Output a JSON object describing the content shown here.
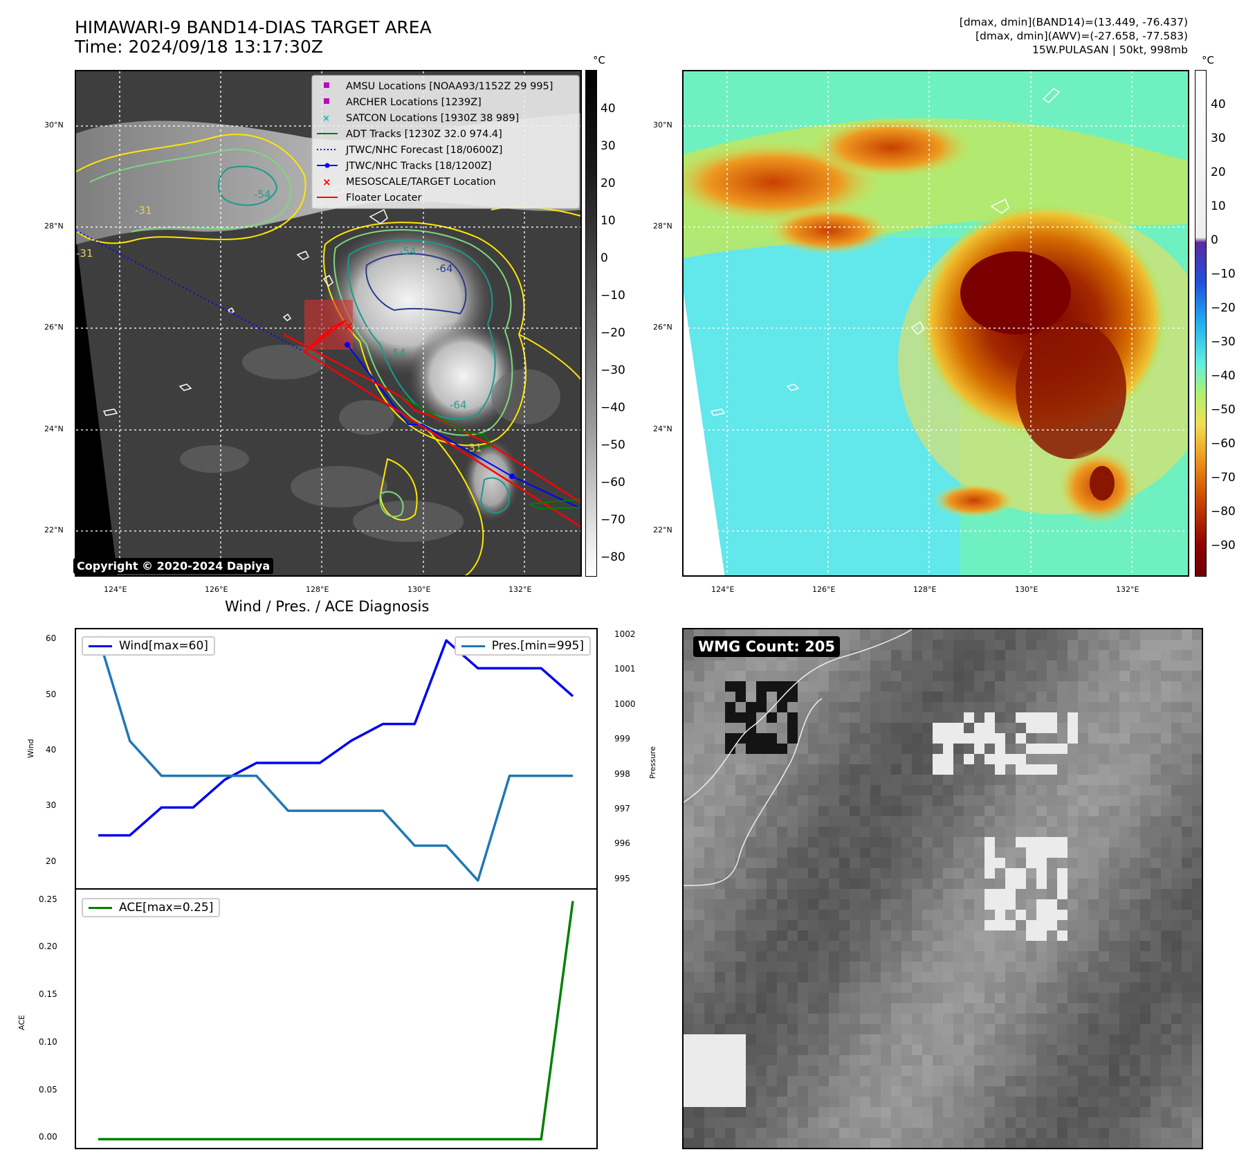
{
  "header": {
    "title_line1": "HIMAWARI-9 BAND14-DIAS TARGET AREA",
    "title_line2": "Time: 2024/09/18 13:17:30Z",
    "stats_line1": "[dmax, dmin](BAND14)=(13.449, -76.437)",
    "stats_line2": "[dmax, dmin](AWV)=(-27.658, -77.583)",
    "stats_line3": "15W.PULASAN | 50kt, 998mb"
  },
  "ir_panel": {
    "copyright": "Copyright © 2020-2024 Dapiya",
    "lat_labels": [
      "30°N",
      "28°N",
      "26°N",
      "24°N",
      "22°N"
    ],
    "lon_labels": [
      "124°E",
      "126°E",
      "128°E",
      "130°E",
      "132°E"
    ],
    "contour_labels": [
      "-31",
      "-31",
      "-54",
      "-54",
      "-64",
      "-54",
      "-31",
      "-64"
    ],
    "colorbar": {
      "unit": "°C",
      "ticks": [
        "40",
        "30",
        "20",
        "10",
        "0",
        "−10",
        "−20",
        "−30",
        "−40",
        "−50",
        "−60",
        "−70",
        "−80"
      ]
    },
    "legend": [
      {
        "label": "AMSU Locations [NOAA93/1152Z 29 995]",
        "marker": "square",
        "color": "#c000c0"
      },
      {
        "label": "ARCHER Locations [1239Z]",
        "marker": "square",
        "color": "#c000c0"
      },
      {
        "label": "SATCON Locations [1930Z 38 989]",
        "marker": "x",
        "color": "#00b5c0"
      },
      {
        "label": "ADT Tracks [1230Z 32.0 974.4]",
        "marker": "line",
        "color": "#007a00"
      },
      {
        "label": "JTWC/NHC Forecast [18/0600Z]",
        "marker": "dotted",
        "color": "#0000ff"
      },
      {
        "label": "JTWC/NHC Tracks [18/1200Z]",
        "marker": "line-dot",
        "color": "#0000ff"
      },
      {
        "label": "MESOSCALE/TARGET Location",
        "marker": "x",
        "color": "#ff0000"
      },
      {
        "label": "Floater Locater",
        "marker": "line",
        "color": "#ff0000"
      }
    ]
  },
  "wv_panel": {
    "lat_labels": [
      "30°N",
      "28°N",
      "26°N",
      "24°N",
      "22°N"
    ],
    "lon_labels": [
      "124°E",
      "126°E",
      "128°E",
      "130°E",
      "132°E"
    ],
    "colorbar": {
      "unit": "°C",
      "ticks": [
        "40",
        "30",
        "20",
        "10",
        "0",
        "−10",
        "−20",
        "−30",
        "−40",
        "−50",
        "−60",
        "−70",
        "−80",
        "−90"
      ]
    }
  },
  "wmg_panel": {
    "badge": "WMG Count: 205"
  },
  "chart_data": [
    {
      "type": "line",
      "title": "Wind / Pres. / ACE Diagnosis",
      "x": [
        0,
        1,
        2,
        3,
        4,
        5,
        6,
        7,
        8,
        9,
        10,
        11,
        12,
        13,
        14,
        15
      ],
      "series": [
        {
          "name": "Wind[max=60]",
          "axis": "left",
          "color": "#0000ee",
          "values": [
            25,
            25,
            30,
            30,
            35,
            38,
            38,
            38,
            42,
            45,
            45,
            60,
            55,
            55,
            55,
            50
          ]
        },
        {
          "name": "Pres.[min=995]",
          "axis": "right",
          "color": "#1f77b4",
          "values": [
            1002,
            999,
            998,
            998,
            998,
            998,
            997,
            997,
            997,
            997,
            996,
            996,
            995,
            998,
            998,
            998
          ]
        }
      ],
      "ylabel": "Wind",
      "y2label": "Pressure",
      "ylim": [
        15,
        62
      ],
      "y2lim": [
        994.7,
        1002.2
      ],
      "yticks": [
        "60",
        "50",
        "40",
        "30",
        "20"
      ],
      "y2ticks": [
        "1002",
        "1001",
        "1000",
        "999",
        "998",
        "997",
        "996",
        "995"
      ]
    },
    {
      "type": "line",
      "x": [
        0,
        1,
        2,
        3,
        4,
        5,
        6,
        7,
        8,
        9,
        10,
        11,
        12,
        13,
        14,
        15
      ],
      "series": [
        {
          "name": "ACE[max=0.25]",
          "color": "#008000",
          "values": [
            0,
            0,
            0,
            0,
            0,
            0,
            0,
            0,
            0,
            0,
            0,
            0,
            0,
            0,
            0,
            0.25
          ]
        }
      ],
      "ylabel": "ACE",
      "ylim": [
        -0.012,
        0.262
      ],
      "yticks": [
        "0.25",
        "0.20",
        "0.15",
        "0.10",
        "0.05",
        "0.00"
      ]
    }
  ]
}
